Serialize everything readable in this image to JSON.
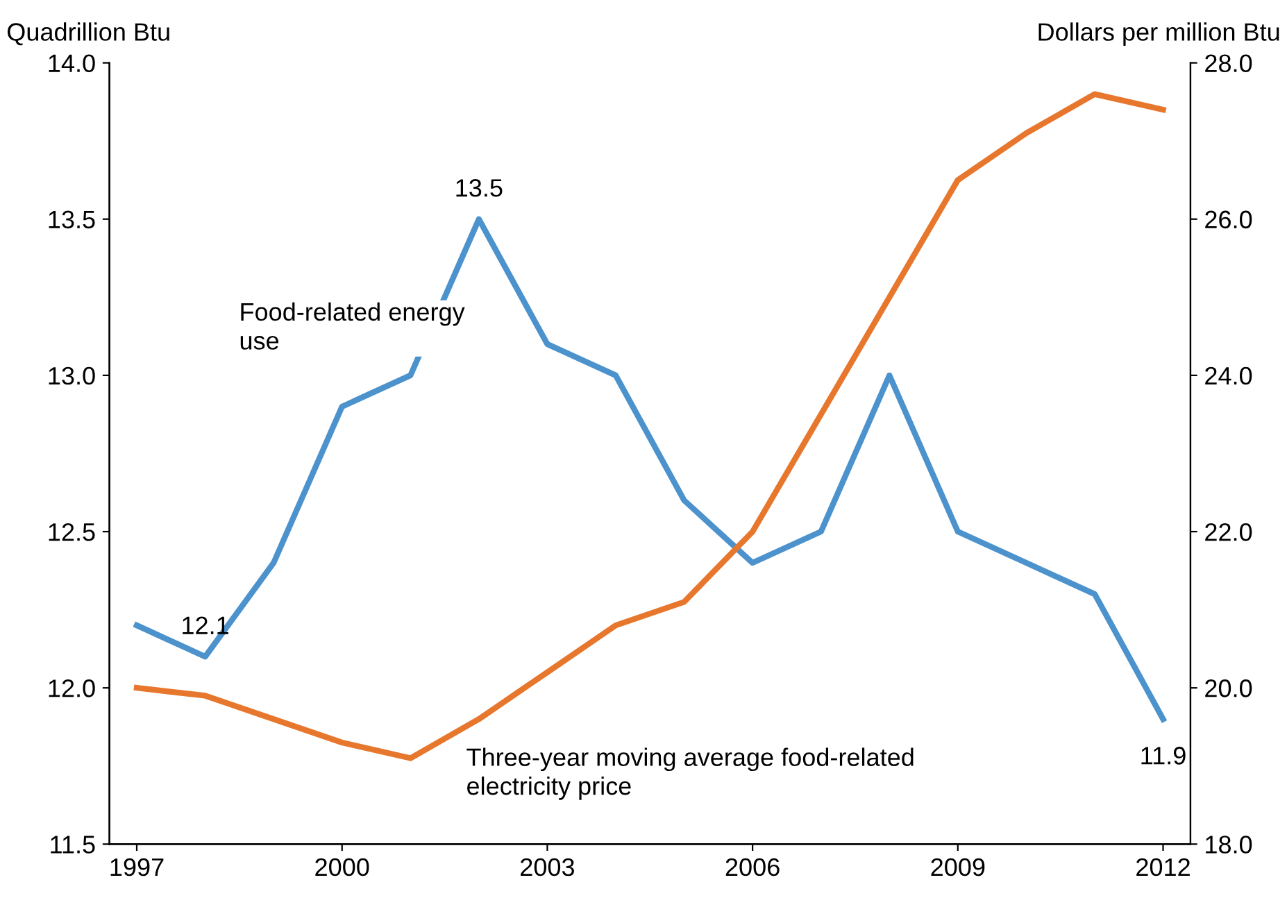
{
  "chart_data": {
    "type": "line",
    "x": [
      1997,
      1998,
      1999,
      2000,
      2001,
      2002,
      2003,
      2004,
      2005,
      2006,
      2007,
      2008,
      2009,
      2010,
      2011,
      2012
    ],
    "series": [
      {
        "name": "Food-related energy use",
        "color": "#4c92cc",
        "values": [
          12.2,
          12.1,
          12.4,
          12.9,
          13.0,
          13.5,
          13.1,
          13.0,
          12.6,
          12.4,
          12.5,
          13.0,
          12.5,
          12.4,
          12.3,
          11.9
        ]
      },
      {
        "name": "Three-year moving average food-related electricity price",
        "color": "#e8772e",
        "axis": "y2",
        "values": [
          20.0,
          19.9,
          19.6,
          19.3,
          19.1,
          19.6,
          20.2,
          20.8,
          21.1,
          22.0,
          23.5,
          25.0,
          26.5,
          27.1,
          27.6,
          27.4
        ]
      }
    ],
    "ylabel": "Quadrillion Btu",
    "y2label": "Dollars per million Btu",
    "xlim": [
      1996.6,
      2012.4
    ],
    "xticks": [
      1997,
      2000,
      2003,
      2006,
      2009,
      2012
    ],
    "ylim": [
      11.5,
      14.0
    ],
    "yticks": [
      {
        "value": 11.5,
        "label": "11.5"
      },
      {
        "value": 12.0,
        "label": "12.0"
      },
      {
        "value": 12.5,
        "label": "12.5"
      },
      {
        "value": 13.0,
        "label": "13.0"
      },
      {
        "value": 13.5,
        "label": "13.5"
      },
      {
        "value": 14.0,
        "label": "14.0"
      }
    ],
    "y2lim": [
      18.0,
      28.0
    ],
    "y2ticks": [
      {
        "value": 18,
        "label": "18.0"
      },
      {
        "value": 20,
        "label": "20.0"
      },
      {
        "value": 22,
        "label": "22.0"
      },
      {
        "value": 24,
        "label": "24.0"
      },
      {
        "value": 26,
        "label": "26.0"
      },
      {
        "value": 28,
        "label": "28.0"
      }
    ],
    "annotations": [
      {
        "text": "12.1",
        "x": 1998,
        "y": 12.1
      },
      {
        "text": "13.5",
        "x": 2002,
        "y": 13.5
      },
      {
        "text": "11.9",
        "x": 2012,
        "y": 11.9
      }
    ],
    "grid": false,
    "legend": false,
    "marker": "none",
    "line_style": "solid"
  }
}
